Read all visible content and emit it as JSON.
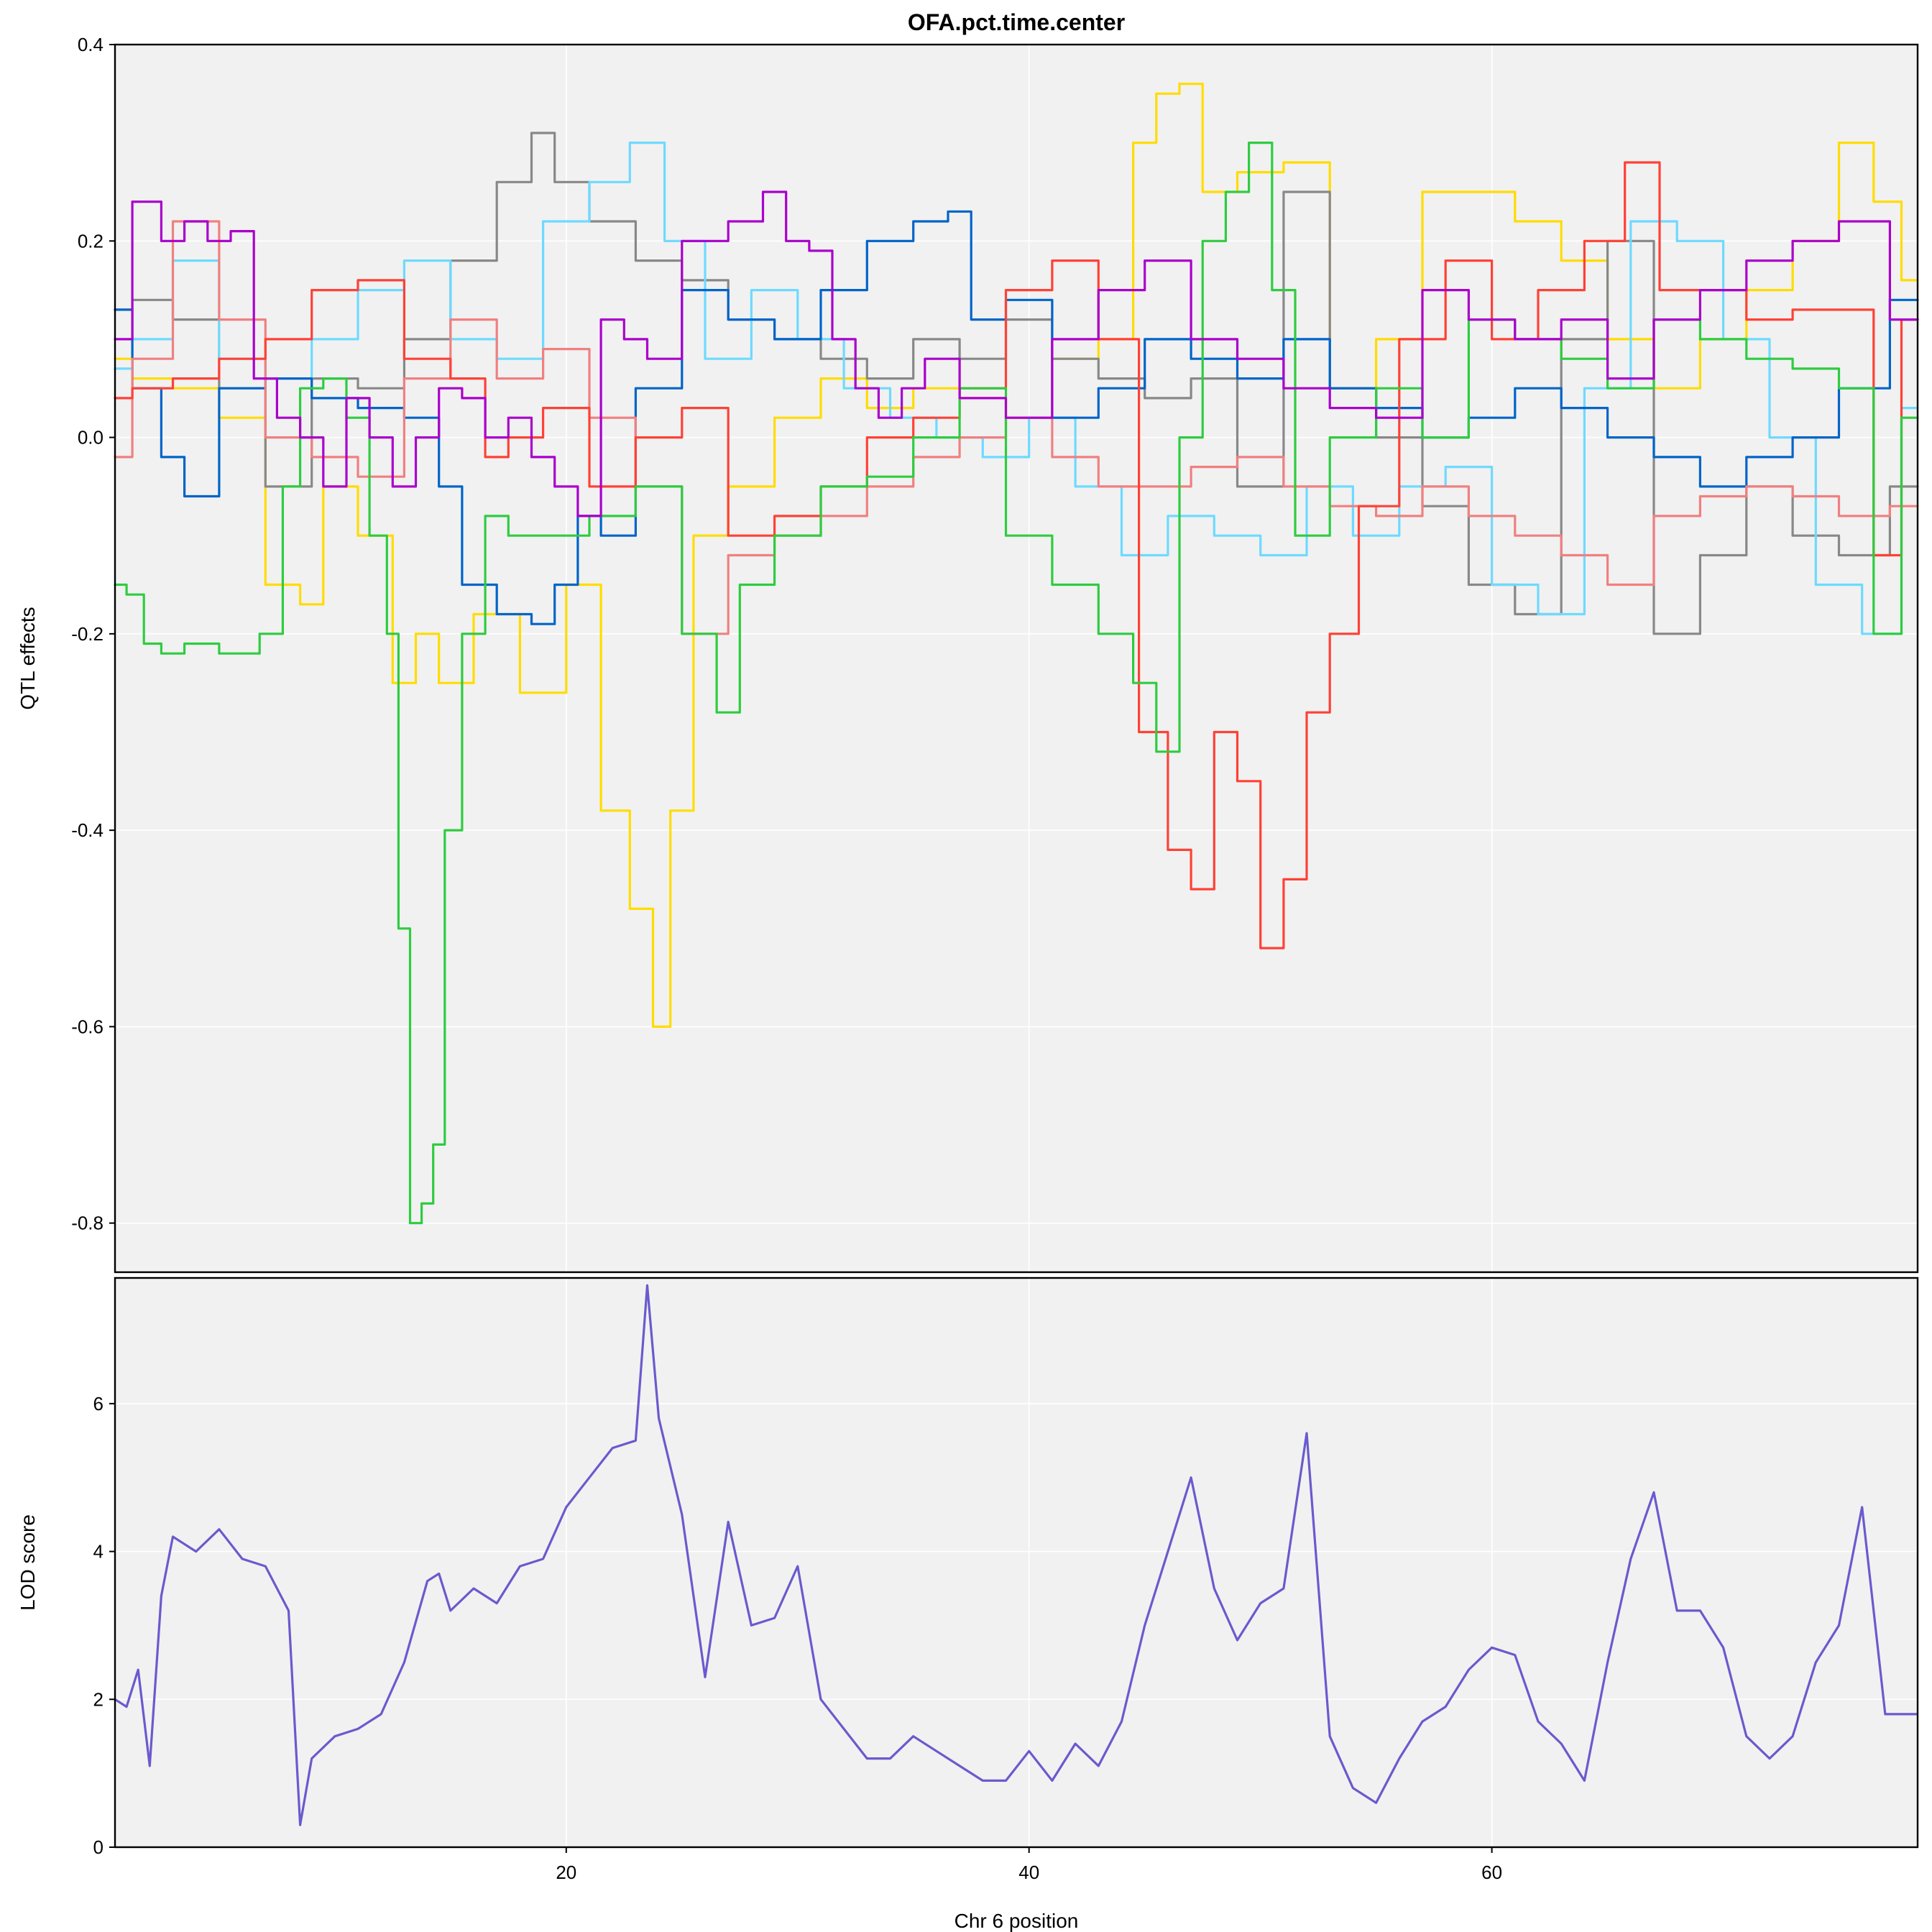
{
  "chart_data": [
    {
      "type": "line",
      "title": "OFA.pct.time.center",
      "xlabel": "",
      "ylabel": "QTL effects",
      "xlim": [
        0.5,
        78.4
      ],
      "ylim": [
        -0.85,
        0.4
      ],
      "xticks": [
        20,
        40,
        60
      ],
      "yticks": [
        -0.8,
        -0.6,
        -0.4,
        -0.2,
        0.0,
        0.2,
        0.4
      ],
      "ytick_labels": [
        "-0.8",
        "-0.6",
        "-0.4",
        "-0.2",
        "0.0",
        "0.2",
        "0.4"
      ],
      "grid": true,
      "legend": "none",
      "series": [
        {
          "color": "#FFDC00",
          "x": [
            0.5,
            2,
            4,
            6,
            8,
            9,
            10,
            12,
            13,
            14,
            15,
            17,
            19,
            21,
            22,
            23.5,
            24,
            25,
            26,
            28,
            30,
            32,
            34,
            36,
            38,
            40,
            42,
            44,
            45,
            46,
            47,
            48,
            50,
            52,
            54,
            56,
            58,
            60,
            62,
            64,
            66,
            68,
            70,
            72,
            74,
            76,
            77,
            78.4
          ],
          "y": [
            0.08,
            0.06,
            0.05,
            0.02,
            -0.15,
            -0.17,
            -0.05,
            -0.1,
            -0.25,
            -0.2,
            -0.25,
            -0.18,
            -0.26,
            -0.15,
            -0.38,
            -0.48,
            -0.6,
            -0.38,
            -0.1,
            -0.05,
            0.02,
            0.06,
            0.03,
            0.05,
            0.04,
            0.02,
            0.08,
            0.1,
            0.3,
            0.35,
            0.36,
            0.25,
            0.27,
            0.28,
            0.05,
            0.1,
            0.25,
            0.25,
            0.22,
            0.18,
            0.1,
            0.05,
            0.1,
            0.15,
            0.2,
            0.3,
            0.24,
            0.16
          ]
        },
        {
          "color": "#888888",
          "x": [
            0.5,
            2,
            4,
            6,
            8,
            10,
            12,
            14,
            16,
            18,
            19,
            20,
            22,
            24,
            26,
            28,
            30,
            32,
            34,
            36,
            38,
            40,
            42,
            44,
            46,
            48,
            50,
            52,
            54,
            56,
            58,
            60,
            62,
            64,
            66,
            68,
            70,
            72,
            74,
            76,
            78.4
          ],
          "y": [
            0.13,
            0.14,
            0.12,
            0.05,
            -0.05,
            0.06,
            0.05,
            0.1,
            0.18,
            0.26,
            0.31,
            0.26,
            0.22,
            0.18,
            0.16,
            0.12,
            0.1,
            0.08,
            0.06,
            0.1,
            0.08,
            0.12,
            0.08,
            0.06,
            0.04,
            0.06,
            -0.05,
            0.25,
            0.05,
            0.0,
            -0.07,
            -0.15,
            -0.18,
            0.1,
            0.2,
            -0.2,
            -0.12,
            -0.05,
            -0.1,
            -0.12,
            -0.05
          ]
        },
        {
          "color": "#6EDAFF",
          "x": [
            0.5,
            2,
            4,
            6,
            8,
            10,
            12,
            14,
            16,
            18,
            20,
            22,
            23.5,
            25,
            27,
            29,
            31,
            33,
            35,
            37,
            39,
            41,
            43,
            45,
            47,
            49,
            51,
            53,
            55,
            57,
            59,
            61,
            63,
            65,
            67,
            69,
            71,
            73,
            75,
            77,
            78.4
          ],
          "y": [
            0.07,
            0.1,
            0.18,
            0.08,
            0.06,
            0.1,
            0.15,
            0.18,
            0.1,
            0.08,
            0.22,
            0.26,
            0.3,
            0.2,
            0.08,
            0.15,
            0.1,
            0.05,
            0.02,
            0.0,
            -0.02,
            0.02,
            -0.05,
            -0.12,
            -0.08,
            -0.1,
            -0.12,
            -0.05,
            -0.1,
            -0.05,
            -0.03,
            -0.15,
            -0.18,
            0.05,
            0.22,
            0.2,
            0.1,
            0.0,
            -0.15,
            -0.2,
            0.03
          ]
        },
        {
          "color": "#0064C9",
          "x": [
            0.5,
            2,
            3,
            4,
            6,
            8,
            10,
            12,
            14,
            15,
            16,
            18,
            19,
            20,
            21,
            22,
            24,
            26,
            28,
            30,
            32,
            34,
            36,
            37,
            38,
            40,
            42,
            44,
            46,
            48,
            50,
            52,
            54,
            56,
            58,
            60,
            62,
            64,
            66,
            68,
            70,
            72,
            74,
            76,
            78.4
          ],
          "y": [
            0.13,
            0.05,
            -0.02,
            -0.06,
            0.05,
            0.06,
            0.04,
            0.03,
            0.02,
            -0.05,
            -0.15,
            -0.18,
            -0.19,
            -0.15,
            -0.08,
            -0.1,
            0.05,
            0.15,
            0.12,
            0.1,
            0.15,
            0.2,
            0.22,
            0.23,
            0.12,
            0.14,
            0.02,
            0.05,
            0.1,
            0.08,
            0.06,
            0.1,
            0.05,
            0.03,
            0.0,
            0.02,
            0.05,
            0.03,
            0.0,
            -0.02,
            -0.05,
            -0.02,
            0.0,
            0.05,
            0.14
          ]
        },
        {
          "color": "#F08080",
          "x": [
            0.5,
            2,
            4,
            6,
            8,
            10,
            12,
            14,
            16,
            18,
            20,
            22,
            24,
            26,
            28,
            30,
            32,
            34,
            36,
            38,
            40,
            42,
            44,
            46,
            48,
            50,
            52,
            54,
            56,
            58,
            60,
            62,
            64,
            66,
            68,
            70,
            72,
            74,
            76,
            78.4
          ],
          "y": [
            -0.02,
            0.08,
            0.22,
            0.12,
            0.0,
            -0.02,
            -0.04,
            0.06,
            0.12,
            0.06,
            0.09,
            0.02,
            -0.05,
            -0.2,
            -0.12,
            -0.1,
            -0.08,
            -0.05,
            -0.02,
            0.0,
            0.02,
            -0.02,
            -0.05,
            -0.05,
            -0.03,
            -0.02,
            -0.05,
            -0.07,
            -0.08,
            -0.05,
            -0.08,
            -0.1,
            -0.12,
            -0.15,
            -0.08,
            -0.06,
            -0.05,
            -0.06,
            -0.08,
            -0.07
          ]
        },
        {
          "color": "#FF4136",
          "x": [
            0.5,
            2,
            4,
            6,
            8,
            10,
            12,
            14,
            16,
            17,
            18,
            20,
            22,
            24,
            26,
            28,
            30,
            32,
            34,
            36,
            38,
            40,
            42,
            44,
            45.5,
            46.5,
            47.5,
            48.5,
            49.5,
            50.5,
            51.5,
            52.5,
            53.5,
            55,
            57,
            59,
            61,
            63,
            65,
            66.5,
            68,
            70,
            72,
            74,
            76,
            77,
            78.4
          ],
          "y": [
            0.04,
            0.05,
            0.06,
            0.08,
            0.1,
            0.15,
            0.16,
            0.08,
            0.06,
            -0.02,
            0.0,
            0.03,
            -0.05,
            0.0,
            0.03,
            -0.1,
            -0.08,
            -0.05,
            0.0,
            0.02,
            0.05,
            0.15,
            0.18,
            0.1,
            -0.3,
            -0.42,
            -0.46,
            -0.3,
            -0.35,
            -0.52,
            -0.45,
            -0.28,
            -0.2,
            -0.07,
            0.1,
            0.18,
            0.1,
            0.15,
            0.2,
            0.28,
            0.15,
            0.15,
            0.12,
            0.13,
            0.13,
            -0.12,
            0.12
          ]
        },
        {
          "color": "#2ECC40",
          "x": [
            0.5,
            1.5,
            2,
            3,
            4,
            6,
            7.5,
            8,
            9,
            10,
            11,
            12,
            12.5,
            13,
            13.5,
            14,
            14.5,
            15,
            16,
            17,
            18,
            20,
            22,
            24,
            26,
            27,
            28,
            30,
            32,
            34,
            36,
            38,
            40,
            42,
            44,
            45,
            46,
            47,
            48,
            49,
            50,
            51,
            52,
            54,
            56,
            58,
            60,
            62,
            64,
            66,
            68,
            70,
            72,
            74,
            76,
            77,
            78.4
          ],
          "y": [
            -0.15,
            -0.16,
            -0.21,
            -0.22,
            -0.21,
            -0.22,
            -0.2,
            -0.05,
            0.05,
            0.06,
            0.02,
            -0.1,
            -0.2,
            -0.5,
            -0.8,
            -0.78,
            -0.72,
            -0.4,
            -0.2,
            -0.08,
            -0.1,
            -0.1,
            -0.08,
            -0.05,
            -0.2,
            -0.28,
            -0.15,
            -0.1,
            -0.05,
            -0.04,
            0.0,
            0.05,
            -0.1,
            -0.15,
            -0.2,
            -0.25,
            -0.32,
            0.0,
            0.2,
            0.25,
            0.3,
            0.15,
            -0.1,
            0.0,
            0.05,
            0.0,
            0.12,
            0.1,
            0.08,
            0.05,
            0.12,
            0.1,
            0.08,
            0.07,
            0.05,
            -0.2,
            0.02
          ]
        },
        {
          "color": "#AA00CC",
          "x": [
            0.5,
            2,
            3,
            4,
            5,
            6,
            7,
            8,
            9,
            10,
            11,
            12,
            13,
            14,
            15,
            16,
            17,
            18,
            19,
            20,
            21,
            22,
            23,
            24,
            26,
            28,
            29,
            30,
            31,
            32,
            33,
            34,
            35,
            36,
            38,
            40,
            42,
            44,
            46,
            48,
            50,
            52,
            54,
            56,
            58,
            60,
            62,
            64,
            66,
            68,
            70,
            72,
            74,
            76,
            78.4
          ],
          "y": [
            0.1,
            0.24,
            0.2,
            0.22,
            0.2,
            0.21,
            0.06,
            0.02,
            0.0,
            -0.05,
            0.04,
            0.0,
            -0.05,
            0.0,
            0.05,
            0.04,
            0.0,
            0.02,
            -0.02,
            -0.05,
            -0.08,
            0.12,
            0.1,
            0.08,
            0.2,
            0.22,
            0.25,
            0.2,
            0.19,
            0.1,
            0.05,
            0.02,
            0.05,
            0.08,
            0.04,
            0.02,
            0.1,
            0.15,
            0.18,
            0.1,
            0.08,
            0.05,
            0.03,
            0.02,
            0.15,
            0.12,
            0.1,
            0.12,
            0.06,
            0.12,
            0.15,
            0.18,
            0.2,
            0.22,
            0.12
          ]
        }
      ]
    },
    {
      "type": "line",
      "xlabel": "Chr 6 position",
      "ylabel": "LOD score",
      "xlim": [
        0.5,
        78.4
      ],
      "ylim": [
        0,
        7.7
      ],
      "xticks": [
        20,
        40,
        60
      ],
      "xtick_labels": [
        "20",
        "40",
        "60"
      ],
      "yticks": [
        0,
        2,
        4,
        6
      ],
      "ytick_labels": [
        "0",
        "2",
        "4",
        "6"
      ],
      "grid": true,
      "legend": "none",
      "series": [
        {
          "color": "#6A5ACD",
          "x": [
            0.5,
            1,
            1.5,
            2,
            2.5,
            3,
            4,
            5,
            6,
            7,
            8,
            8.5,
            9,
            10,
            11,
            12,
            13,
            14,
            14.5,
            15,
            16,
            17,
            18,
            19,
            20,
            21,
            22,
            23,
            23.5,
            24,
            25,
            26,
            27,
            28,
            29,
            30,
            31,
            32,
            33,
            34,
            35,
            36,
            37,
            38,
            39,
            40,
            41,
            42,
            43,
            44,
            45,
            46,
            47,
            48,
            49,
            50,
            51,
            52,
            53,
            54,
            55,
            56,
            57,
            58,
            59,
            60,
            61,
            62,
            63,
            64,
            65,
            66,
            67,
            68,
            69,
            70,
            71,
            72,
            73,
            74,
            75,
            76,
            77,
            78.4
          ],
          "y": [
            2.0,
            1.9,
            2.4,
            1.1,
            3.4,
            4.2,
            4.0,
            4.3,
            3.9,
            3.8,
            3.2,
            0.3,
            1.2,
            1.5,
            1.6,
            1.8,
            2.5,
            3.6,
            3.7,
            3.2,
            3.5,
            3.3,
            3.8,
            3.9,
            4.6,
            5.0,
            5.4,
            5.5,
            7.6,
            5.8,
            4.5,
            2.3,
            4.4,
            3.0,
            3.1,
            3.8,
            2.0,
            1.6,
            1.2,
            1.2,
            1.5,
            1.3,
            1.1,
            0.9,
            0.9,
            1.3,
            0.9,
            1.4,
            1.1,
            1.7,
            3.0,
            4.0,
            5.0,
            3.5,
            2.8,
            3.3,
            3.5,
            5.6,
            1.5,
            0.8,
            0.6,
            1.2,
            1.7,
            1.9,
            2.4,
            2.7,
            2.6,
            1.7,
            1.4,
            0.9,
            2.5,
            3.9,
            4.8,
            3.2,
            3.2,
            2.7,
            1.5,
            1.2,
            1.5,
            2.5,
            3.0,
            4.6,
            1.8,
            1.8
          ]
        }
      ]
    }
  ]
}
